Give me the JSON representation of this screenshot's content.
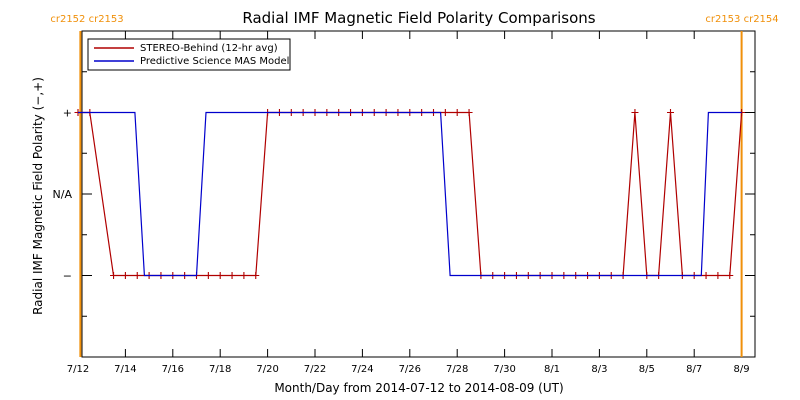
{
  "chart_data": {
    "type": "line",
    "title": "Radial IMF Magnetic Field Polarity Comparisons",
    "xlabel": "Month/Day from 2014-07-12 to 2014-08-09 (UT)",
    "ylabel": "Radial IMF Magnetic Field Polarity (−,+)",
    "xlim": [
      0,
      28.3
    ],
    "ylim": [
      -2,
      2
    ],
    "x_ticks": [
      {
        "x": 0,
        "label": "7/12"
      },
      {
        "x": 2,
        "label": "7/14"
      },
      {
        "x": 4,
        "label": "7/16"
      },
      {
        "x": 6,
        "label": "7/18"
      },
      {
        "x": 8,
        "label": "7/20"
      },
      {
        "x": 10,
        "label": "7/22"
      },
      {
        "x": 12,
        "label": "7/24"
      },
      {
        "x": 14,
        "label": "7/26"
      },
      {
        "x": 16,
        "label": "7/28"
      },
      {
        "x": 18,
        "label": "7/30"
      },
      {
        "x": 20,
        "label": "8/1"
      },
      {
        "x": 22,
        "label": "8/3"
      },
      {
        "x": 24,
        "label": "8/5"
      },
      {
        "x": 26,
        "label": "8/7"
      },
      {
        "x": 28,
        "label": "8/9"
      }
    ],
    "y_ticks": [
      {
        "y": 1,
        "label": "+"
      },
      {
        "y": 0,
        "label": "N/A"
      },
      {
        "y": -1,
        "label": "−"
      }
    ],
    "legend": {
      "placement": "top-left",
      "entries": [
        "STEREO-Behind (12-hr avg)",
        "Predictive Science MAS Model"
      ]
    },
    "series": [
      {
        "name": "STEREO-Behind (12-hr avg)",
        "color": "#b00000",
        "marker": "+",
        "x": [
          0,
          0.5,
          1.5,
          2.0,
          2.5,
          3.0,
          3.5,
          4.0,
          4.5,
          5.0,
          5.5,
          6.0,
          6.5,
          7.0,
          7.5,
          8.0,
          8.5,
          9.0,
          9.5,
          10.0,
          10.5,
          11.0,
          11.5,
          12.0,
          12.5,
          13.0,
          13.5,
          14.0,
          14.5,
          15.0,
          15.5,
          16.0,
          16.5,
          17.0,
          17.5,
          18.0,
          18.5,
          19.0,
          19.5,
          20.0,
          20.5,
          21.0,
          21.5,
          22.0,
          22.5,
          23.0,
          23.5,
          24.0,
          24.5,
          25.0,
          25.5,
          26.0,
          26.5,
          27.0,
          27.5,
          28.0
        ],
        "y": [
          1,
          1,
          -1,
          -1,
          -1,
          -1,
          -1,
          -1,
          -1,
          -1,
          -1,
          -1,
          -1,
          -1,
          -1,
          1,
          1,
          1,
          1,
          1,
          1,
          1,
          1,
          1,
          1,
          1,
          1,
          1,
          1,
          1,
          1,
          1,
          1,
          -1,
          -1,
          -1,
          -1,
          -1,
          -1,
          -1,
          -1,
          -1,
          -1,
          -1,
          -1,
          -1,
          1,
          -1,
          -1,
          1,
          -1,
          -1,
          -1,
          -1,
          -1,
          1
        ]
      },
      {
        "name": "Predictive Science MAS Model",
        "color": "#0000cc",
        "x": [
          0,
          2.4,
          2.8,
          5.0,
          5.4,
          15.3,
          15.7,
          26.3,
          26.6,
          28.0
        ],
        "y": [
          1,
          1,
          -1,
          -1,
          1,
          1,
          -1,
          -1,
          1,
          1
        ]
      }
    ],
    "carrington": [
      {
        "x": 0.1,
        "label": "cr2152 cr2153"
      },
      {
        "x": 28.0,
        "label": "cr2153 cr2154"
      }
    ],
    "vline_color": "#f0900a",
    "grid": false
  }
}
